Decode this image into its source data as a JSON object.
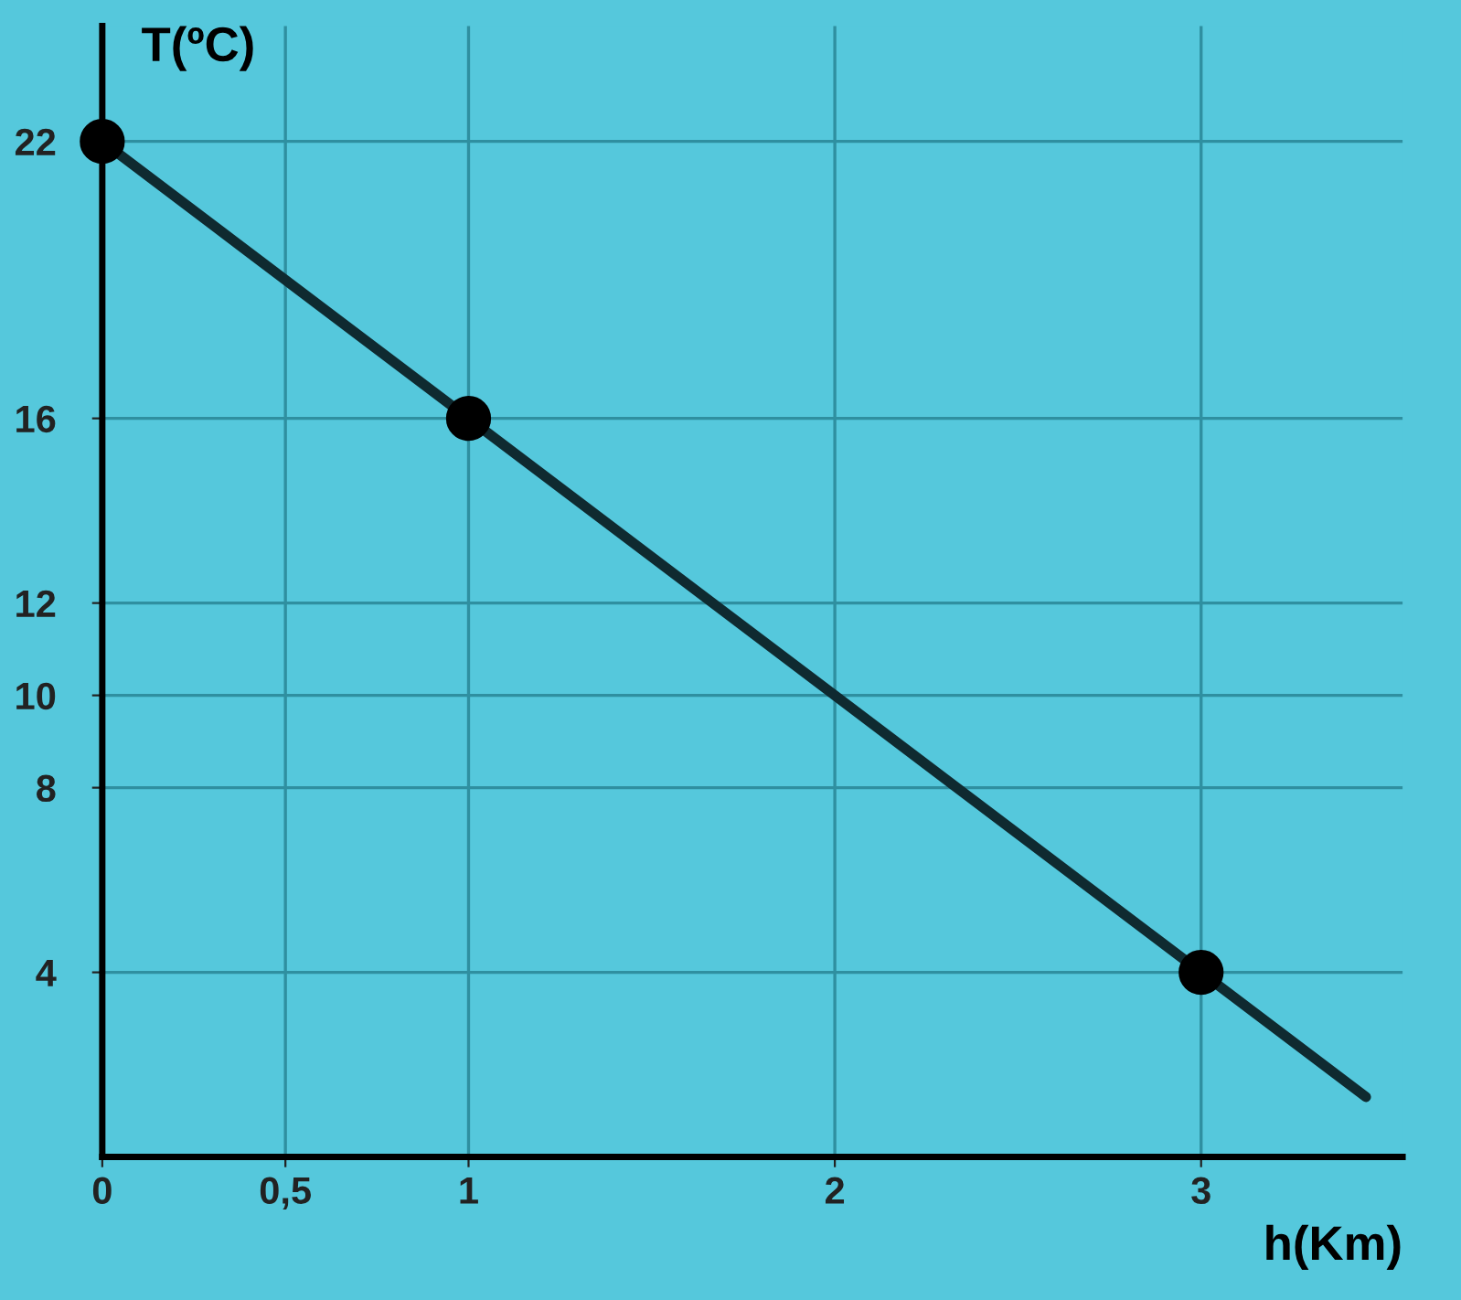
{
  "chart_data": {
    "type": "line",
    "xlabel": "h(Km)",
    "ylabel": "T(ºC)",
    "series": [
      {
        "color": "#0f2a30",
        "x": [
          0,
          3.45
        ],
        "values": [
          22,
          1.3
        ]
      },
      {
        "type": "scatter",
        "color": "#000000",
        "marker": "circle",
        "x": [
          0,
          1,
          3
        ],
        "values": [
          22,
          16,
          4
        ]
      }
    ],
    "xlim": [
      0,
      3.55
    ],
    "ylim": [
      0,
      24.5
    ],
    "xticks": [
      0,
      {
        "value": 0.5,
        "label": "0,5"
      },
      1,
      2,
      3
    ],
    "yticks": [
      4,
      8,
      10,
      12,
      16,
      22
    ],
    "grid": true
  }
}
